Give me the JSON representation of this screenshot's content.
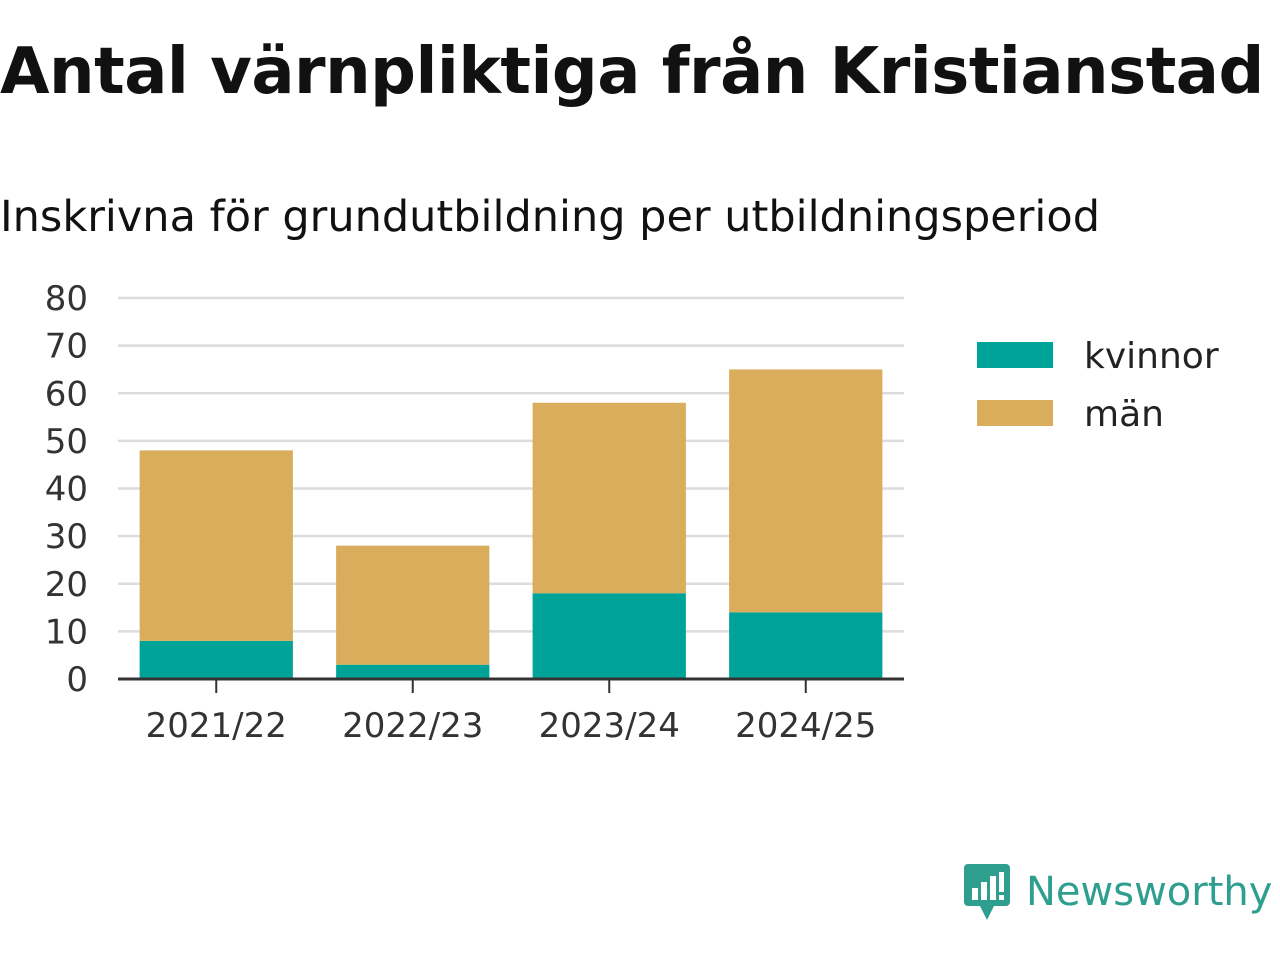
{
  "chart_data": {
    "type": "bar",
    "stacked": true,
    "title": "Antal värnpliktiga från Kristianstad",
    "subtitle": "Inskrivna för grundutbildning per utbildningsperiod",
    "categories": [
      "2021/22",
      "2022/23",
      "2023/24",
      "2024/25"
    ],
    "series": [
      {
        "name": "kvinnor",
        "values": [
          8,
          3,
          18,
          14
        ],
        "color": "#00a398"
      },
      {
        "name": "män",
        "values": [
          40,
          25,
          40,
          51
        ],
        "color": "#d9ad5b"
      }
    ],
    "ylim": [
      0,
      80
    ],
    "yticks": [
      0,
      10,
      20,
      30,
      40,
      50,
      60,
      70,
      80
    ],
    "grid": true,
    "legend_position": "right"
  },
  "brand": {
    "name": "Newsworthy",
    "icon": "newsworthy-logo-icon",
    "color": "#2e9e8f"
  }
}
